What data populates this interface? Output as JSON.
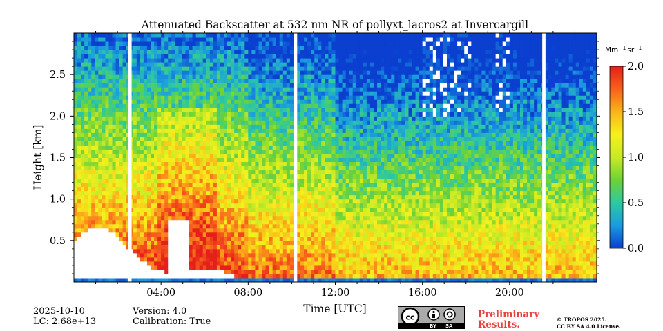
{
  "chart_data": {
    "type": "heatmap",
    "title": "Attenuated Backscatter at 532 nm NR of pollyxt_lacros2 at Invercargill",
    "xlabel": "Time [UTC]",
    "ylabel": "Height [km]",
    "xlim_hours": [
      0,
      24
    ],
    "ylim_km": [
      0,
      3.0
    ],
    "x_ticks": [
      {
        "hour": 4,
        "label": "04:00"
      },
      {
        "hour": 8,
        "label": "08:00"
      },
      {
        "hour": 12,
        "label": "12:00"
      },
      {
        "hour": 16,
        "label": "16:00"
      },
      {
        "hour": 20,
        "label": "20:00"
      }
    ],
    "y_ticks": [
      {
        "km": 0.5,
        "label": "0.5"
      },
      {
        "km": 1.0,
        "label": "1.0"
      },
      {
        "km": 1.5,
        "label": "1.5"
      },
      {
        "km": 2.0,
        "label": "2.0"
      },
      {
        "km": 2.5,
        "label": "2.5"
      }
    ],
    "colorbar": {
      "unit_main": "Mm",
      "unit_exp1": "−1",
      "unit_mid": "sr",
      "unit_exp2": "−1",
      "min": 0.0,
      "max": 2.0,
      "ticks": [
        {
          "value": 0.0,
          "label": "0.0"
        },
        {
          "value": 0.5,
          "label": "0.5"
        },
        {
          "value": 1.0,
          "label": "1.0"
        },
        {
          "value": 1.5,
          "label": "1.5"
        },
        {
          "value": 2.0,
          "label": "2.0"
        }
      ],
      "colormap": [
        "#0a3fd0",
        "#1a9be0",
        "#2ec9a0",
        "#6ed236",
        "#c8ea26",
        "#f6f01c",
        "#fbb41a",
        "#f7611b",
        "#e51f1a"
      ]
    },
    "data_gaps_hours": [
      [
        2.5,
        2.65
      ],
      [
        10.1,
        10.25
      ],
      [
        21.5,
        21.65
      ]
    ],
    "low_cloud_free_region": {
      "start_hour": 0,
      "end_hour": 7.3,
      "max_height_km": 0.8
    },
    "high_cloud_hours": [
      [
        16.0,
        18.2
      ],
      [
        19.3,
        20.0
      ]
    ]
  },
  "footer": {
    "date": "2025-10-10",
    "lc": "LC: 2.68e+13",
    "version": "Version: 4.0",
    "calibration": "Calibration: True",
    "preliminary_line1": "Preliminary",
    "preliminary_line2": "Results.",
    "copyright_line1": "© TROPOS 2025.",
    "copyright_line2": "CC BY SA 4.0 License.",
    "license_by": "BY",
    "license_sa": "SA",
    "license_cc": "cc"
  }
}
